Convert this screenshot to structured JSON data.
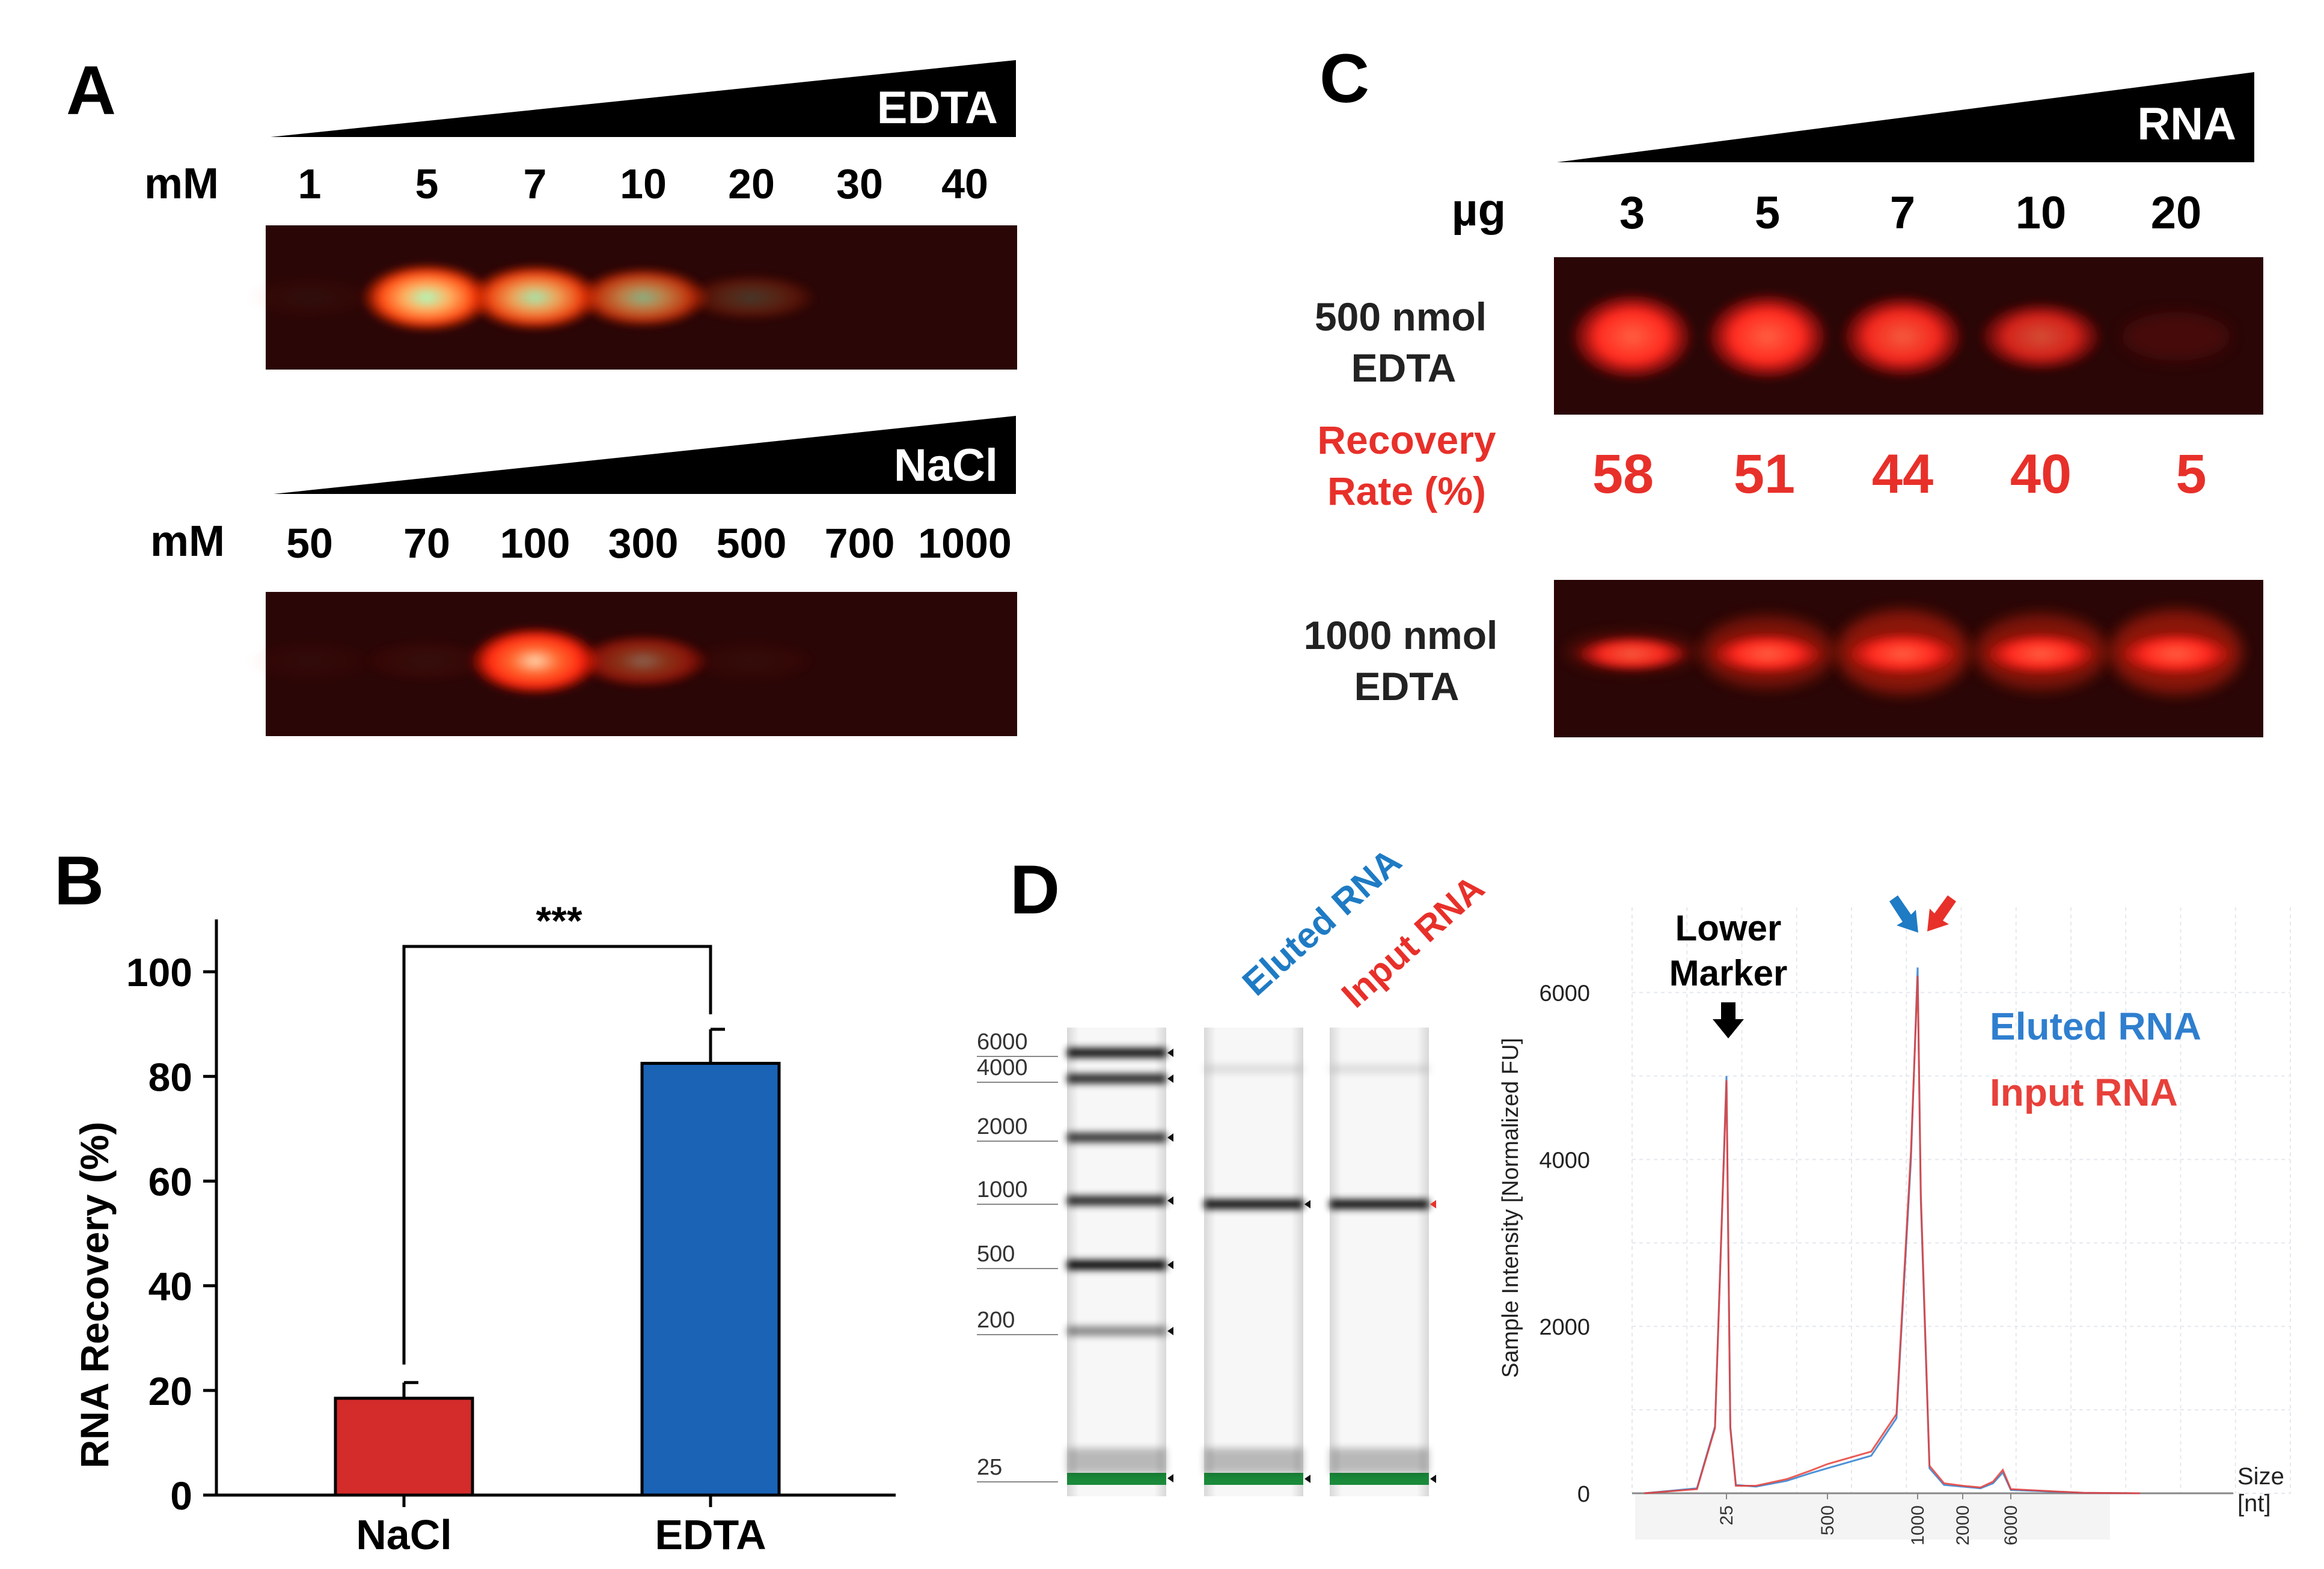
{
  "panel_a": {
    "label": "A",
    "edta": {
      "wedge_label": "EDTA",
      "unit": "mM",
      "lanes": [
        "1",
        "5",
        "7",
        "10",
        "20",
        "30",
        "40"
      ],
      "band_intensity": [
        0.03,
        1.0,
        0.92,
        0.7,
        0.2,
        0.02,
        0.0
      ]
    },
    "nacl": {
      "wedge_label": "NaCl",
      "unit": "mM",
      "lanes": [
        "50",
        "70",
        "100",
        "300",
        "500",
        "700",
        "1000"
      ],
      "band_intensity": [
        0.03,
        0.05,
        1.0,
        0.45,
        0.04,
        0.02,
        0.02
      ]
    }
  },
  "panel_b": {
    "label": "B",
    "chart_data": {
      "type": "bar",
      "categories": [
        "NaCl",
        "EDTA"
      ],
      "values": [
        18.5,
        82.5
      ],
      "errors": [
        3.0,
        6.5
      ],
      "colors": [
        "#d42b2b",
        "#1a63b5"
      ],
      "ylabel": "RNA Recovery (%)",
      "ylim": [
        0,
        110
      ],
      "yticks": [
        "0",
        "20",
        "40",
        "60",
        "80",
        "100"
      ],
      "significance": "***",
      "grid": false
    }
  },
  "panel_c": {
    "label": "C",
    "wedge_label": "RNA",
    "unit": "µg",
    "lanes": [
      "3",
      "5",
      "7",
      "10",
      "20"
    ],
    "gel1_label_line1": "500 nmol",
    "gel1_label_line2": "EDTA",
    "gel1_band_intensity": [
      1.0,
      1.0,
      0.95,
      0.8,
      0.05
    ],
    "recovery_label_line1": "Recovery",
    "recovery_label_line2": "Rate (%)",
    "recovery_values": [
      "58",
      "51",
      "44",
      "40",
      "5"
    ],
    "recovery_color": "#e8302a",
    "gel2_label_line1": "1000 nmol",
    "gel2_label_line2": "EDTA",
    "gel2_band_intensity": [
      0.45,
      0.85,
      1.0,
      0.9,
      1.0
    ]
  },
  "panel_d": {
    "label": "D",
    "ladder_sizes": [
      "6000",
      "4000",
      "2000",
      "1000",
      "500",
      "200",
      "25"
    ],
    "lane_labels": [
      "Eluted RNA",
      "Input RNA"
    ],
    "lane_label_colors": [
      "#1e7bc4",
      "#e8302a"
    ],
    "electropherogram": {
      "chart_data": {
        "type": "line",
        "title": "",
        "xlabel_line1": "Size",
        "xlabel_line2": "[nt]",
        "ylabel": "Sample Intensity [Normalized FU]",
        "ylim": [
          0,
          6500
        ],
        "yticks": [
          "0",
          "2000",
          "4000",
          "6000"
        ],
        "x_ticks": [
          "25",
          "500",
          "1000",
          "2000",
          "6000"
        ],
        "grid": true,
        "series": [
          {
            "name": "Eluted RNA",
            "color": "#2f7fcf",
            "x": [
              10,
              18,
              22,
              25,
              28,
              33,
              60,
              150,
              300,
              500,
              700,
              850,
              950,
              1000,
              1050,
              1200,
              1500,
              2000,
              3000,
              4000,
              5000,
              6000,
              8000,
              10000
            ],
            "y": [
              0,
              60,
              800,
              5000,
              800,
              100,
              80,
              150,
              240,
              300,
              450,
              900,
              4000,
              6300,
              3500,
              300,
              100,
              80,
              60,
              120,
              250,
              40,
              5,
              0
            ]
          },
          {
            "name": "Input RNA",
            "color": "#e8403a",
            "x": [
              10,
              18,
              22,
              25,
              28,
              33,
              60,
              150,
              300,
              500,
              700,
              850,
              950,
              1000,
              1050,
              1200,
              1500,
              2000,
              3000,
              4000,
              5000,
              6000,
              8000,
              10000
            ],
            "y": [
              0,
              50,
              780,
              4950,
              780,
              90,
              90,
              170,
              270,
              350,
              500,
              950,
              4100,
              6200,
              3600,
              330,
              120,
              90,
              70,
              140,
              280,
              50,
              5,
              0
            ]
          }
        ],
        "annotations": {
          "lower_marker_line1": "Lower",
          "lower_marker_line2": "Marker",
          "legend_eluted": "Eluted RNA",
          "legend_input": "Input RNA"
        }
      }
    }
  }
}
